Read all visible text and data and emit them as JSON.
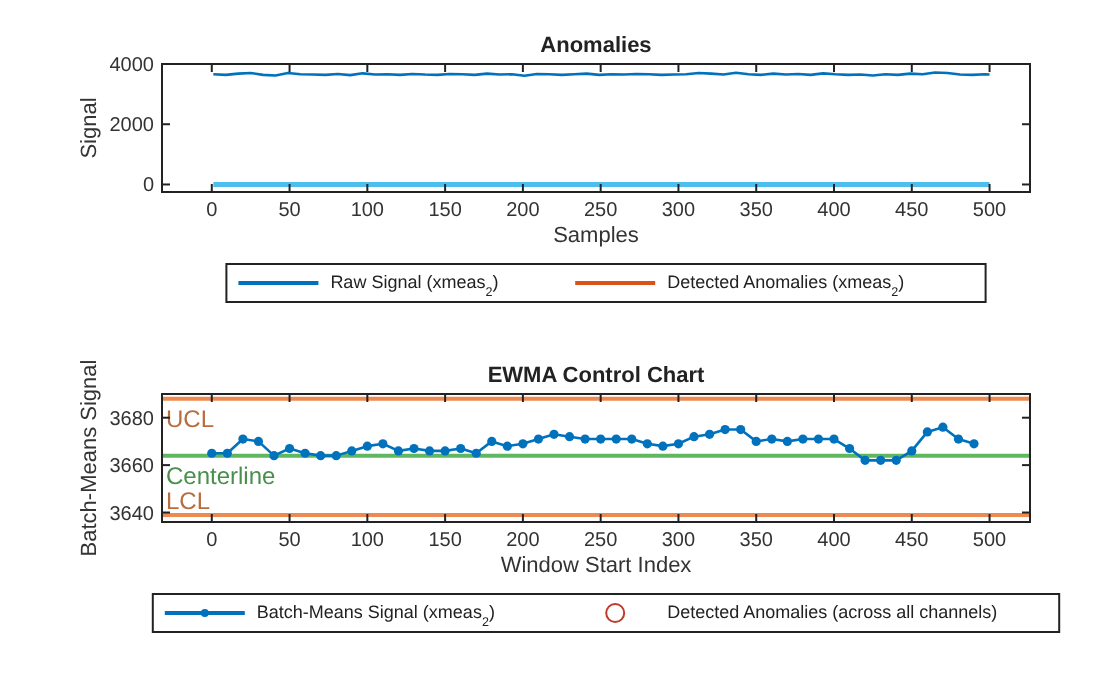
{
  "chart_data": [
    {
      "type": "line",
      "title": "Anomalies",
      "xlabel": "Samples",
      "ylabel": "Signal",
      "xlim": [
        -32,
        526
      ],
      "xticks": [
        0,
        50,
        100,
        150,
        200,
        250,
        300,
        350,
        400,
        450,
        500
      ],
      "ylim": [
        -250,
        4000
      ],
      "yticks": [
        0,
        2000,
        4000
      ],
      "legend": "bottom",
      "series": [
        {
          "name": "Raw Signal (xmeas$_{2}$)",
          "color": "#0072bd",
          "x": [
            1,
            9,
            17,
            25,
            33,
            41,
            49,
            57,
            65,
            73,
            81,
            89,
            97,
            105,
            113,
            121,
            129,
            137,
            145,
            153,
            161,
            169,
            177,
            185,
            193,
            201,
            209,
            217,
            225,
            233,
            241,
            249,
            257,
            265,
            273,
            281,
            289,
            297,
            305,
            313,
            321,
            329,
            337,
            345,
            353,
            361,
            369,
            377,
            385,
            393,
            401,
            409,
            417,
            425,
            433,
            441,
            449,
            457,
            465,
            473,
            481,
            489,
            497,
            500
          ],
          "values": [
            3660,
            3640,
            3680,
            3700,
            3640,
            3620,
            3700,
            3660,
            3650,
            3640,
            3670,
            3630,
            3690,
            3650,
            3660,
            3640,
            3670,
            3650,
            3640,
            3670,
            3660,
            3640,
            3680,
            3650,
            3660,
            3610,
            3670,
            3660,
            3640,
            3660,
            3680,
            3640,
            3660,
            3650,
            3670,
            3660,
            3640,
            3650,
            3660,
            3700,
            3680,
            3650,
            3710,
            3660,
            3640,
            3680,
            3650,
            3670,
            3640,
            3690,
            3660,
            3640,
            3650,
            3620,
            3660,
            3640,
            3680,
            3660,
            3720,
            3700,
            3650,
            3640,
            3660,
            3650
          ]
        },
        {
          "name": "Detected Anomalies (xmeas$_{2}$)",
          "color": "#d95319"
        },
        {
          "color": "#4dbeee",
          "x": [
            1,
            500
          ],
          "values": [
            0,
            0
          ]
        }
      ]
    },
    {
      "type": "line",
      "title": "EWMA Control Chart",
      "xlabel": "Window Start Index",
      "ylabel": "Batch-Means Signal",
      "xlim": [
        -32,
        526
      ],
      "xticks": [
        0,
        50,
        100,
        150,
        200,
        250,
        300,
        350,
        400,
        450,
        500
      ],
      "ylim": [
        3636,
        3690
      ],
      "yticks": [
        3640,
        3660,
        3680
      ],
      "legend": "bottom",
      "marker": "circle",
      "ref_lines": [
        {
          "axis": "y",
          "value": 3688,
          "label": "UCL",
          "color": "#ed8a4f"
        },
        {
          "axis": "y",
          "value": 3664,
          "label": "Centerline",
          "color": "#5fb760"
        },
        {
          "axis": "y",
          "value": 3639,
          "label": "LCL",
          "color": "#ed8a4f"
        }
      ],
      "series": [
        {
          "name": "Batch-Means Signal (xmeas$_{2}$)",
          "color": "#0072bd",
          "x": [
            0,
            10,
            20,
            30,
            40,
            50,
            60,
            70,
            80,
            90,
            100,
            110,
            120,
            130,
            140,
            150,
            160,
            170,
            180,
            190,
            200,
            210,
            220,
            230,
            240,
            250,
            260,
            270,
            280,
            290,
            300,
            310,
            320,
            330,
            340,
            350,
            360,
            370,
            380,
            390,
            400,
            410,
            420,
            430,
            440,
            450,
            460,
            470,
            480,
            490
          ],
          "values": [
            3665,
            3665,
            3671,
            3670,
            3664,
            3667,
            3665,
            3664,
            3664,
            3666,
            3668,
            3669,
            3666,
            3667,
            3666,
            3666,
            3667,
            3665,
            3670,
            3668,
            3669,
            3671,
            3673,
            3672,
            3671,
            3671,
            3671,
            3671,
            3669,
            3668,
            3669,
            3672,
            3673,
            3675,
            3675,
            3670,
            3671,
            3670,
            3671,
            3671,
            3671,
            3667,
            3662,
            3662,
            3662,
            3666,
            3674,
            3676,
            3671,
            3669
          ]
        },
        {
          "name": "Detected Anomalies (across all channels)",
          "type": "scatter",
          "color": "#c0392b"
        }
      ]
    }
  ]
}
